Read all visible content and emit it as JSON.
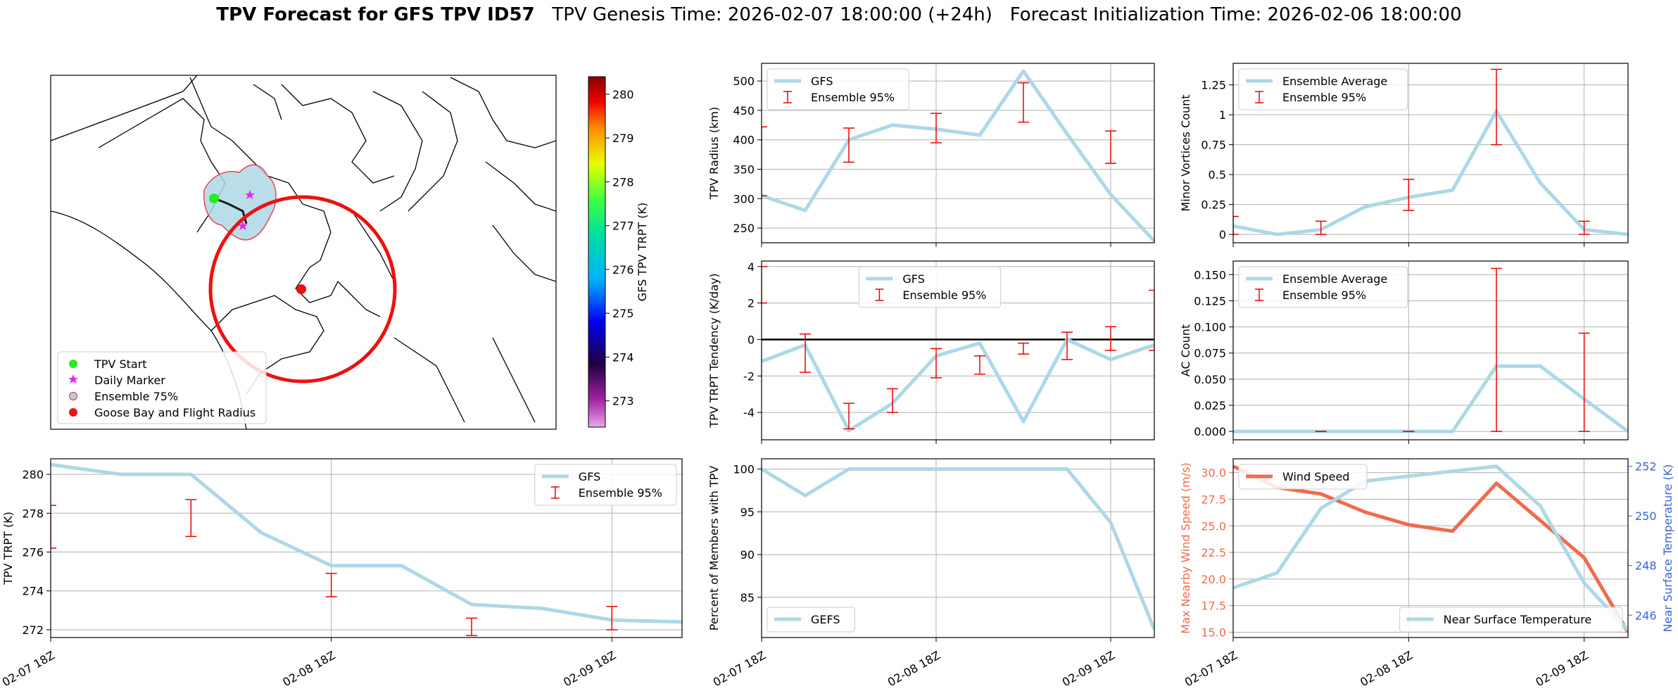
{
  "title": {
    "main": "TPV Forecast for GFS TPV ID57",
    "genesis": "TPV Genesis Time: 2026-02-07 18:00:00 (+24h)",
    "init": "Forecast Initialization Time: 2026-02-06 18:00:00"
  },
  "map": {
    "colorbar_label": "GFS TPV TRPT (K)",
    "colorbar_ticks": [
      "273",
      "274",
      "275",
      "276",
      "277",
      "278",
      "279",
      "280"
    ],
    "colorbar_range": [
      272.4,
      280.4
    ],
    "legend": [
      {
        "label": "TPV Start",
        "color": "#22ee22",
        "marker": "circle"
      },
      {
        "label": "Daily Marker",
        "color": "#ee22ee",
        "marker": "star"
      },
      {
        "label": "Ensemble 75%",
        "color": "#aad4e4",
        "marker": "ring"
      },
      {
        "label": "Goose Bay and Flight Radius",
        "color": "#ee1111",
        "marker": "circle"
      }
    ],
    "colors": {
      "coast": "#000000",
      "ensemble_fill": "#add8e6",
      "ensemble_edge": "#ee4444",
      "flight_radius": "#ee1111"
    }
  },
  "x_tick_labels": [
    "02-07 18Z",
    "02-08 18Z",
    "02-09 18Z"
  ],
  "colors": {
    "gfs": "#add8e6",
    "ensemble": "#ee0000",
    "wind": "#f26a4d",
    "temp_axis": "#3a62d8",
    "grid": "#b0b0b0"
  },
  "chart_data": [
    {
      "id": "radius",
      "type": "line",
      "ylabel": "TPV Radius (km)",
      "ylim": [
        225,
        530
      ],
      "yticks": [
        250,
        300,
        350,
        400,
        450,
        500
      ],
      "xlim": [
        0,
        54
      ],
      "series": [
        {
          "name": "GFS",
          "x": [
            0,
            6,
            12,
            18,
            24,
            30,
            36,
            42,
            48,
            54
          ],
          "values": [
            305,
            280,
            400,
            425,
            418,
            408,
            517,
            410,
            307,
            228
          ]
        }
      ],
      "errorbars": {
        "name": "Ensemble 95%",
        "x": [
          0,
          12,
          24,
          36,
          48
        ],
        "low": [
          305,
          362,
          395,
          430,
          360
        ],
        "high": [
          422,
          420,
          445,
          497,
          415
        ]
      },
      "legend": {
        "position": "upper left",
        "entries": [
          "GFS",
          "Ensemble 95%"
        ]
      }
    },
    {
      "id": "minor",
      "type": "line",
      "ylabel": "Minor Vortices Count",
      "ylim": [
        -0.07,
        1.43
      ],
      "yticks": [
        0.0,
        0.25,
        0.5,
        0.75,
        1.0,
        1.25
      ],
      "xlim": [
        0,
        54
      ],
      "series": [
        {
          "name": "Ensemble Average",
          "x": [
            0,
            6,
            12,
            18,
            24,
            30,
            36,
            42,
            48,
            54
          ],
          "values": [
            0.07,
            0.0,
            0.04,
            0.23,
            0.31,
            0.37,
            1.03,
            0.43,
            0.04,
            0.0
          ]
        }
      ],
      "errorbars": {
        "name": "Ensemble 95%",
        "x": [
          0,
          12,
          24,
          36,
          48
        ],
        "low": [
          0.0,
          0.0,
          0.2,
          0.75,
          0.0
        ],
        "high": [
          0.15,
          0.11,
          0.46,
          1.38,
          0.11
        ]
      },
      "legend": {
        "position": "upper left",
        "entries": [
          "Ensemble Average",
          "Ensemble 95%"
        ]
      }
    },
    {
      "id": "tendency",
      "type": "line",
      "ylabel": "TPV TRPT Tendency (K/day)",
      "ylim": [
        -5.5,
        4.3
      ],
      "yticks": [
        -4,
        -2,
        0,
        2,
        4
      ],
      "xlim": [
        0,
        54
      ],
      "zero_line": true,
      "series": [
        {
          "name": "GFS",
          "x": [
            0,
            6,
            12,
            18,
            24,
            30,
            36,
            42,
            48,
            54
          ],
          "values": [
            -1.2,
            -0.3,
            -5.0,
            -3.5,
            -0.9,
            -0.2,
            -4.5,
            0.0,
            -1.1,
            -0.3
          ]
        }
      ],
      "errorbars": {
        "name": "Ensemble 95%",
        "x": [
          0,
          6,
          12,
          18,
          24,
          30,
          36,
          42,
          48,
          54
        ],
        "low": [
          2.0,
          -1.8,
          -4.9,
          -4.0,
          -2.1,
          -1.9,
          -0.8,
          -1.1,
          -0.6,
          -0.6
        ],
        "high": [
          4.0,
          0.3,
          -3.5,
          -2.7,
          -0.5,
          -0.9,
          -0.2,
          0.4,
          0.7,
          2.7
        ]
      },
      "legend": {
        "position": "upper center",
        "entries": [
          "GFS",
          "Ensemble 95%"
        ]
      }
    },
    {
      "id": "ac",
      "type": "line",
      "ylabel": "AC Count",
      "ylim": [
        -0.008,
        0.163
      ],
      "yticks": [
        0.0,
        0.025,
        0.05,
        0.075,
        0.1,
        0.125,
        0.15
      ],
      "ytick_labels": [
        "0.000",
        "0.025",
        "0.050",
        "0.075",
        "0.100",
        "0.125",
        "0.150"
      ],
      "xlim": [
        0,
        54
      ],
      "series": [
        {
          "name": "Ensemble Average",
          "x": [
            0,
            6,
            12,
            18,
            24,
            30,
            36,
            42,
            48,
            54
          ],
          "values": [
            0,
            0,
            0,
            0,
            0,
            0,
            0.0625,
            0.0625,
            0.031,
            0.0
          ]
        }
      ],
      "errorbars": {
        "name": "Ensemble 95%",
        "x": [
          12,
          24,
          36,
          48
        ],
        "low": [
          0,
          0,
          0,
          0
        ],
        "high": [
          0,
          0,
          0.156,
          0.094
        ]
      },
      "legend": {
        "position": "upper left",
        "entries": [
          "Ensemble Average",
          "Ensemble 95%"
        ]
      }
    },
    {
      "id": "trpt",
      "type": "line",
      "ylabel": "TPV TRPT (K)",
      "ylim": [
        271.6,
        280.8
      ],
      "yticks": [
        272,
        274,
        276,
        278,
        280
      ],
      "xlim": [
        0,
        54
      ],
      "series": [
        {
          "name": "GFS",
          "x": [
            0,
            6,
            12,
            18,
            24,
            30,
            36,
            42,
            48,
            54
          ],
          "values": [
            280.5,
            280.0,
            280.0,
            277.0,
            275.3,
            275.3,
            273.3,
            273.1,
            272.5,
            272.4
          ]
        }
      ],
      "errorbars": {
        "name": "Ensemble 95%",
        "x": [
          0,
          12,
          24,
          36,
          48
        ],
        "low": [
          276.2,
          276.8,
          273.7,
          271.7,
          272.0
        ],
        "high": [
          278.4,
          278.7,
          274.9,
          272.6,
          273.2
        ]
      },
      "legend": {
        "position": "upper right",
        "entries": [
          "GFS",
          "Ensemble 95%"
        ]
      }
    },
    {
      "id": "percent",
      "type": "line",
      "ylabel": "Percent of Members with TPV",
      "ylim": [
        80.3,
        101.2
      ],
      "yticks": [
        85,
        90,
        95,
        100
      ],
      "xlim": [
        0,
        54
      ],
      "series": [
        {
          "name": "GEFS",
          "x": [
            0,
            6,
            12,
            18,
            24,
            30,
            36,
            42,
            48,
            54
          ],
          "values": [
            100,
            96.9,
            100,
            100,
            100,
            100,
            100,
            100,
            93.75,
            81.25
          ]
        }
      ],
      "legend": {
        "position": "lower left",
        "entries": [
          "GEFS"
        ]
      }
    },
    {
      "id": "wind_temp",
      "type": "line",
      "xlim": [
        0,
        54
      ],
      "left_axis": {
        "label": "Max Nearby Wind Speed (m/s)",
        "ylim": [
          14.5,
          31.3
        ],
        "yticks": [
          15.0,
          17.5,
          20.0,
          22.5,
          25.0,
          27.5,
          30.0
        ],
        "ytick_labels": [
          "15.0",
          "17.5",
          "20.0",
          "22.5",
          "25.0",
          "27.5",
          "30.0"
        ]
      },
      "right_axis": {
        "label": "Near Surface Temperature (K)",
        "ylim": [
          245.1,
          252.3
        ],
        "yticks": [
          246,
          248,
          250,
          252
        ]
      },
      "series": [
        {
          "name": "Wind Speed",
          "axis": "left",
          "x": [
            0,
            6,
            12,
            18,
            24,
            30,
            36,
            42,
            48,
            54
          ],
          "values": [
            30.6,
            28.6,
            28.0,
            26.3,
            25.1,
            24.5,
            29.0,
            25.5,
            22.0,
            15.0
          ]
        },
        {
          "name": "Near Surface Temperature",
          "axis": "right",
          "x": [
            0,
            6,
            12,
            18,
            24,
            30,
            36,
            42,
            48,
            54
          ],
          "values": [
            247.1,
            247.7,
            250.3,
            251.4,
            251.6,
            251.8,
            252.0,
            250.4,
            247.3,
            245.4
          ]
        }
      ],
      "legend": {
        "wind_position": "upper left",
        "temp_position": "lower right"
      }
    }
  ]
}
